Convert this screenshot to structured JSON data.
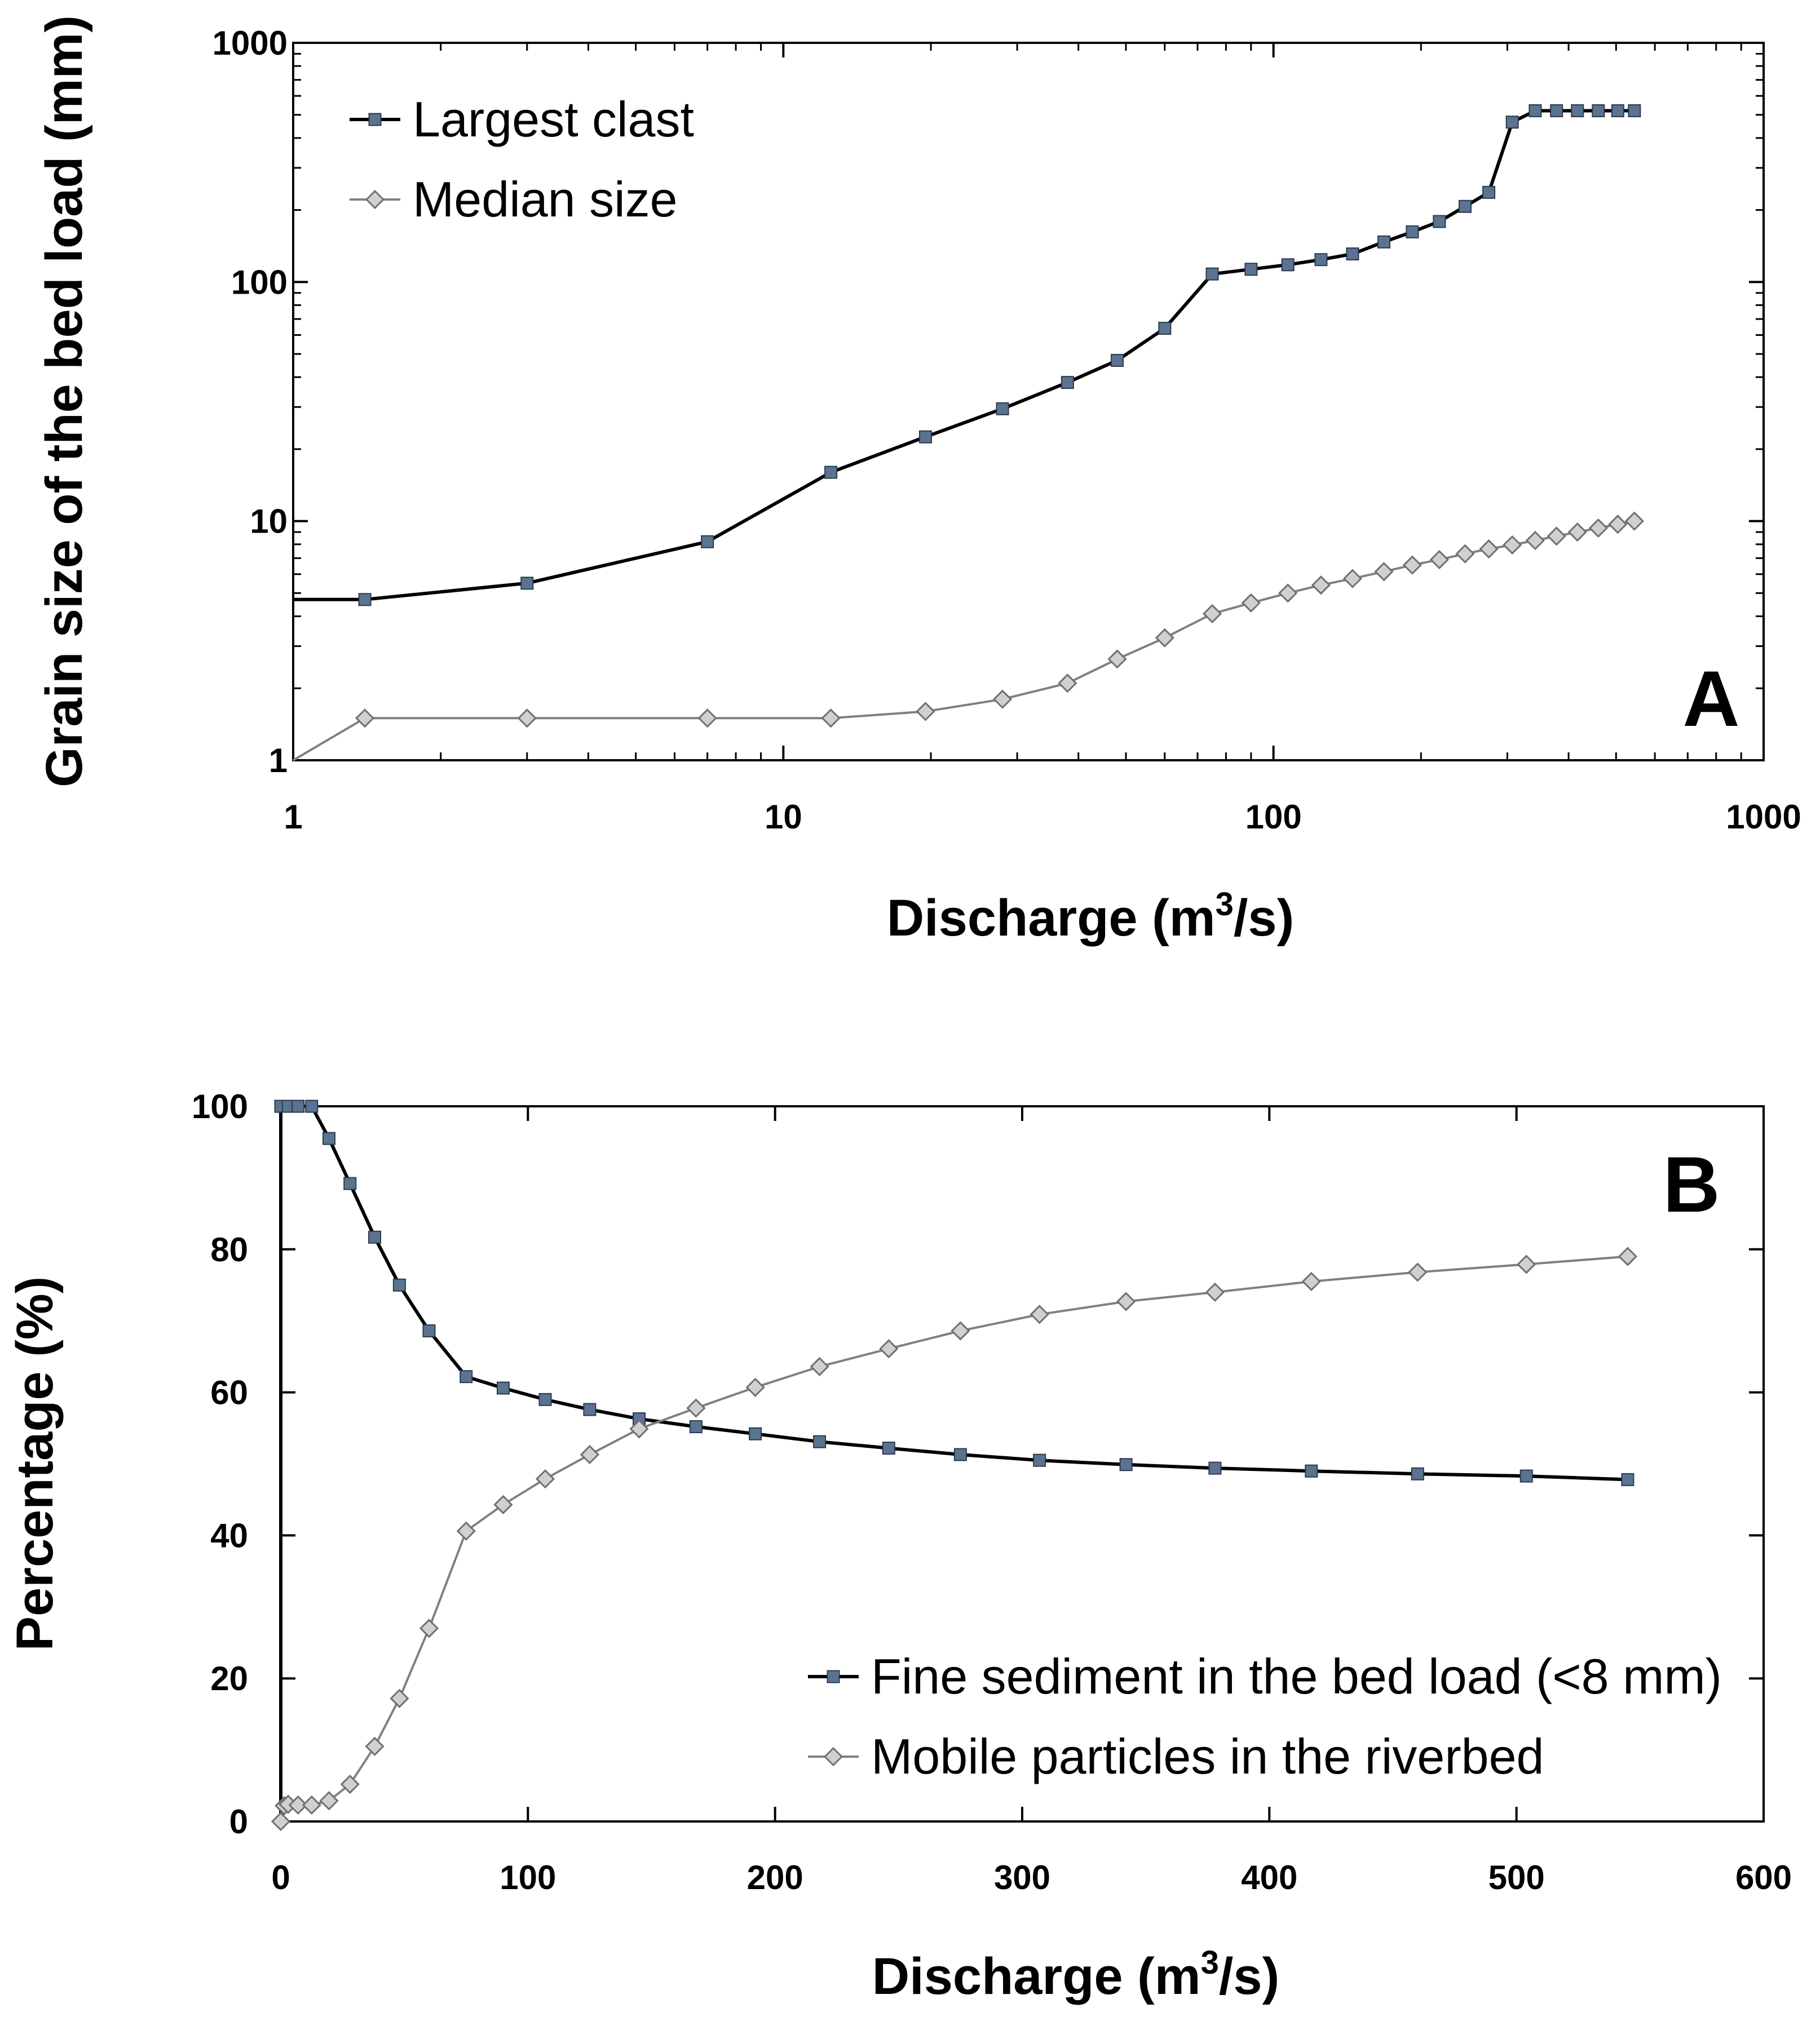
{
  "chart_data": [
    {
      "type": "line",
      "panel": "A",
      "panel_label": "A",
      "xscale": "log",
      "yscale": "log",
      "xlim": [
        1,
        1000
      ],
      "ylim": [
        1,
        1000
      ],
      "xticks": [
        1,
        10,
        100,
        1000
      ],
      "yticks": [
        1,
        10,
        100,
        1000
      ],
      "xlabel": {
        "text": "Discharge (m",
        "sup": "3",
        "tail": "/s)"
      },
      "ylabel": "Grain size of the bed load (mm)",
      "legend_position": "top-left",
      "series": [
        {
          "name": "Largest clast",
          "marker": "square",
          "color": "#000000",
          "marker_color": "#5b7391",
          "x": [
            1,
            1.4,
            3,
            7,
            12.5,
            19.5,
            28,
            38,
            48,
            60,
            75,
            90,
            107,
            125,
            145,
            168,
            192,
            218,
            246,
            275,
            307,
            342,
            378,
            417,
            460,
            504,
            545
          ],
          "y": [
            4.7,
            4.7,
            5.5,
            8.2,
            16,
            22.5,
            29.5,
            38,
            47,
            64,
            108,
            113,
            118,
            124,
            131,
            147,
            162,
            179,
            207,
            237,
            466,
            520,
            520,
            520,
            520,
            520,
            520
          ],
          "marker_start": 1
        },
        {
          "name": "Median size",
          "marker": "diamond",
          "color": "#808080",
          "marker_color": "#d0d0d0",
          "x": [
            1,
            1.4,
            3,
            7,
            12.5,
            19.5,
            28,
            38,
            48,
            60,
            75,
            90,
            107,
            125,
            145,
            168,
            192,
            218,
            246,
            275,
            307,
            342,
            378,
            417,
            460,
            504,
            545
          ],
          "y": [
            1.0,
            1.5,
            1.5,
            1.5,
            1.5,
            1.6,
            1.8,
            2.1,
            2.65,
            3.25,
            4.1,
            4.55,
            5.0,
            5.4,
            5.75,
            6.15,
            6.55,
            6.9,
            7.3,
            7.65,
            7.95,
            8.3,
            8.65,
            9.0,
            9.35,
            9.7,
            10.0
          ],
          "marker_start": 1
        }
      ]
    },
    {
      "type": "line",
      "panel": "B",
      "panel_label": "B",
      "xscale": "linear",
      "yscale": "linear",
      "xlim": [
        0,
        600
      ],
      "ylim": [
        0,
        100
      ],
      "xticks": [
        0,
        100,
        200,
        300,
        400,
        500,
        600
      ],
      "yticks": [
        0,
        20,
        40,
        60,
        80,
        100
      ],
      "xlabel": {
        "text": "Discharge (m",
        "sup": "3",
        "tail": "/s)"
      },
      "ylabel": "Percentage (%)",
      "legend_position": "bottom-right",
      "series": [
        {
          "name": "Fine sediment in the bed load (<8 mm)",
          "marker": "square",
          "color": "#000000",
          "marker_color": "#5b7391",
          "x": [
            0,
            0,
            3,
            7,
            12.5,
            19.5,
            28,
            38,
            48,
            60,
            75,
            90,
            107,
            125,
            145,
            168,
            192,
            218,
            246,
            275,
            307,
            342,
            378,
            417,
            460,
            504,
            545
          ],
          "y": [
            0,
            100,
            100,
            100,
            100,
            95.5,
            89.2,
            81.7,
            75,
            68.6,
            62.2,
            60.6,
            59,
            57.6,
            56.3,
            55.2,
            54.2,
            53.1,
            52.2,
            51.3,
            50.5,
            49.9,
            49.4,
            49,
            48.6,
            48.3,
            47.8
          ],
          "marker_start": 1
        },
        {
          "name": "Mobile particles in the riverbed",
          "marker": "diamond",
          "color": "#808080",
          "marker_color": "#d0d0d0",
          "x": [
            0,
            1.4,
            3,
            7,
            12.5,
            19.5,
            28,
            38,
            48,
            60,
            75,
            90,
            107,
            125,
            145,
            168,
            192,
            218,
            246,
            275,
            307,
            342,
            378,
            417,
            460,
            504,
            545
          ],
          "y": [
            0,
            2.2,
            2.4,
            2.3,
            2.3,
            2.9,
            5.2,
            10.5,
            17.2,
            27,
            40.6,
            44.3,
            47.9,
            51.3,
            54.9,
            57.8,
            60.7,
            63.6,
            66.1,
            68.6,
            70.9,
            72.7,
            74,
            75.5,
            76.8,
            77.9,
            79
          ],
          "marker_start": 0
        }
      ]
    }
  ]
}
